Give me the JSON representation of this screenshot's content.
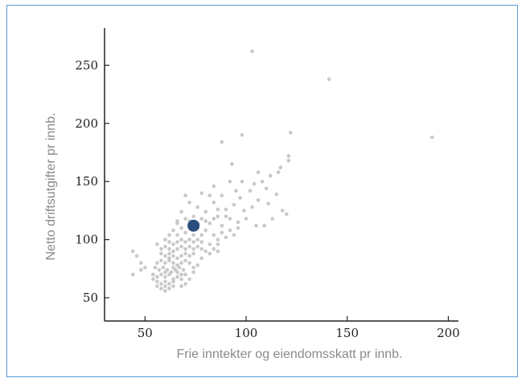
{
  "chart_data": {
    "type": "scatter",
    "title": "",
    "xlabel": "Frie inntekter og eiendomsskatt pr innb.",
    "ylabel": "Netto driftsutgifter pr innb.",
    "xlim": [
      30,
      205
    ],
    "ylim": [
      30,
      282
    ],
    "x_ticks": [
      50,
      100,
      150,
      200
    ],
    "y_ticks": [
      50,
      100,
      150,
      200,
      250
    ],
    "grid": false,
    "colors": {
      "points": "#c8c8c8",
      "highlight": "#2a4d7e",
      "axis": "#222222"
    },
    "series": [
      {
        "points": [
          [
            103,
            262
          ],
          [
            141,
            238
          ],
          [
            192,
            188
          ],
          [
            122,
            192
          ],
          [
            98,
            190
          ],
          [
            88,
            184
          ],
          [
            93,
            165
          ],
          [
            121,
            172
          ],
          [
            121,
            168
          ],
          [
            117,
            162
          ],
          [
            116,
            158
          ],
          [
            112,
            155
          ],
          [
            108,
            150
          ],
          [
            110,
            144
          ],
          [
            104,
            148
          ],
          [
            102,
            142
          ],
          [
            95,
            142
          ],
          [
            97,
            136
          ],
          [
            94,
            130
          ],
          [
            99,
            125
          ],
          [
            103,
            128
          ],
          [
            106,
            134
          ],
          [
            111,
            131
          ],
          [
            115,
            139
          ],
          [
            118,
            125
          ],
          [
            120,
            122
          ],
          [
            113,
            118
          ],
          [
            109,
            112
          ],
          [
            105,
            112
          ],
          [
            96,
            115
          ],
          [
            92,
            108
          ],
          [
            88,
            112
          ],
          [
            90,
            120
          ],
          [
            86,
            126
          ],
          [
            84,
            132
          ],
          [
            82,
            138
          ],
          [
            78,
            140
          ],
          [
            72,
            132
          ],
          [
            76,
            128
          ],
          [
            80,
            124
          ],
          [
            88,
            138
          ],
          [
            98,
            150
          ],
          [
            106,
            158
          ],
          [
            92,
            150
          ],
          [
            84,
            146
          ],
          [
            70,
            138
          ],
          [
            86,
            120
          ],
          [
            90,
            126
          ],
          [
            92,
            118
          ],
          [
            78,
            118
          ],
          [
            82,
            114
          ],
          [
            68,
            124
          ],
          [
            70,
            118
          ],
          [
            74,
            120
          ],
          [
            66,
            116
          ],
          [
            68,
            110
          ],
          [
            72,
            112
          ],
          [
            76,
            110
          ],
          [
            80,
            108
          ],
          [
            84,
            104
          ],
          [
            64,
            108
          ],
          [
            66,
            104
          ],
          [
            70,
            106
          ],
          [
            74,
            104
          ],
          [
            78,
            104
          ],
          [
            60,
            100
          ],
          [
            62,
            98
          ],
          [
            64,
            96
          ],
          [
            66,
            98
          ],
          [
            68,
            100
          ],
          [
            70,
            98
          ],
          [
            72,
            100
          ],
          [
            74,
            98
          ],
          [
            76,
            100
          ],
          [
            78,
            98
          ],
          [
            58,
            92
          ],
          [
            60,
            94
          ],
          [
            62,
            92
          ],
          [
            64,
            90
          ],
          [
            66,
            92
          ],
          [
            68,
            94
          ],
          [
            70,
            92
          ],
          [
            72,
            94
          ],
          [
            74,
            92
          ],
          [
            76,
            94
          ],
          [
            58,
            88
          ],
          [
            60,
            86
          ],
          [
            62,
            88
          ],
          [
            64,
            86
          ],
          [
            66,
            84
          ],
          [
            68,
            86
          ],
          [
            70,
            88
          ],
          [
            72,
            86
          ],
          [
            74,
            88
          ],
          [
            56,
            80
          ],
          [
            58,
            82
          ],
          [
            60,
            80
          ],
          [
            62,
            82
          ],
          [
            64,
            80
          ],
          [
            66,
            78
          ],
          [
            68,
            80
          ],
          [
            70,
            82
          ],
          [
            72,
            80
          ],
          [
            55,
            76
          ],
          [
            57,
            74
          ],
          [
            59,
            76
          ],
          [
            61,
            74
          ],
          [
            63,
            72
          ],
          [
            65,
            74
          ],
          [
            67,
            76
          ],
          [
            69,
            74
          ],
          [
            54,
            70
          ],
          [
            56,
            68
          ],
          [
            58,
            70
          ],
          [
            60,
            68
          ],
          [
            62,
            70
          ],
          [
            64,
            66
          ],
          [
            66,
            68
          ],
          [
            68,
            70
          ],
          [
            56,
            64
          ],
          [
            58,
            62
          ],
          [
            60,
            64
          ],
          [
            62,
            62
          ],
          [
            64,
            64
          ],
          [
            58,
            58
          ],
          [
            60,
            60
          ],
          [
            62,
            58
          ],
          [
            44,
            90
          ],
          [
            46,
            86
          ],
          [
            48,
            80
          ],
          [
            50,
            76
          ],
          [
            48,
            74
          ],
          [
            44,
            70
          ],
          [
            56,
            96
          ],
          [
            62,
            104
          ],
          [
            66,
            114
          ],
          [
            72,
            116
          ],
          [
            76,
            114
          ],
          [
            80,
            116
          ],
          [
            84,
            118
          ],
          [
            62,
            84
          ],
          [
            64,
            76
          ],
          [
            66,
            72
          ],
          [
            68,
            66
          ],
          [
            70,
            62
          ],
          [
            74,
            72
          ],
          [
            76,
            78
          ],
          [
            78,
            84
          ],
          [
            80,
            90
          ],
          [
            82,
            96
          ],
          [
            84,
            92
          ],
          [
            86,
            100
          ],
          [
            88,
            106
          ],
          [
            90,
            102
          ],
          [
            94,
            104
          ],
          [
            96,
            110
          ],
          [
            100,
            118
          ],
          [
            86,
            96
          ],
          [
            78,
            92
          ],
          [
            82,
            88
          ],
          [
            86,
            90
          ],
          [
            60,
            72
          ],
          [
            56,
            60
          ],
          [
            60,
            56
          ],
          [
            54,
            66
          ],
          [
            70,
            70
          ],
          [
            72,
            66
          ],
          [
            74,
            76
          ],
          [
            68,
            60
          ],
          [
            64,
            60
          ]
        ]
      },
      {
        "highlight": true,
        "points": [
          [
            74,
            112
          ]
        ]
      }
    ]
  }
}
